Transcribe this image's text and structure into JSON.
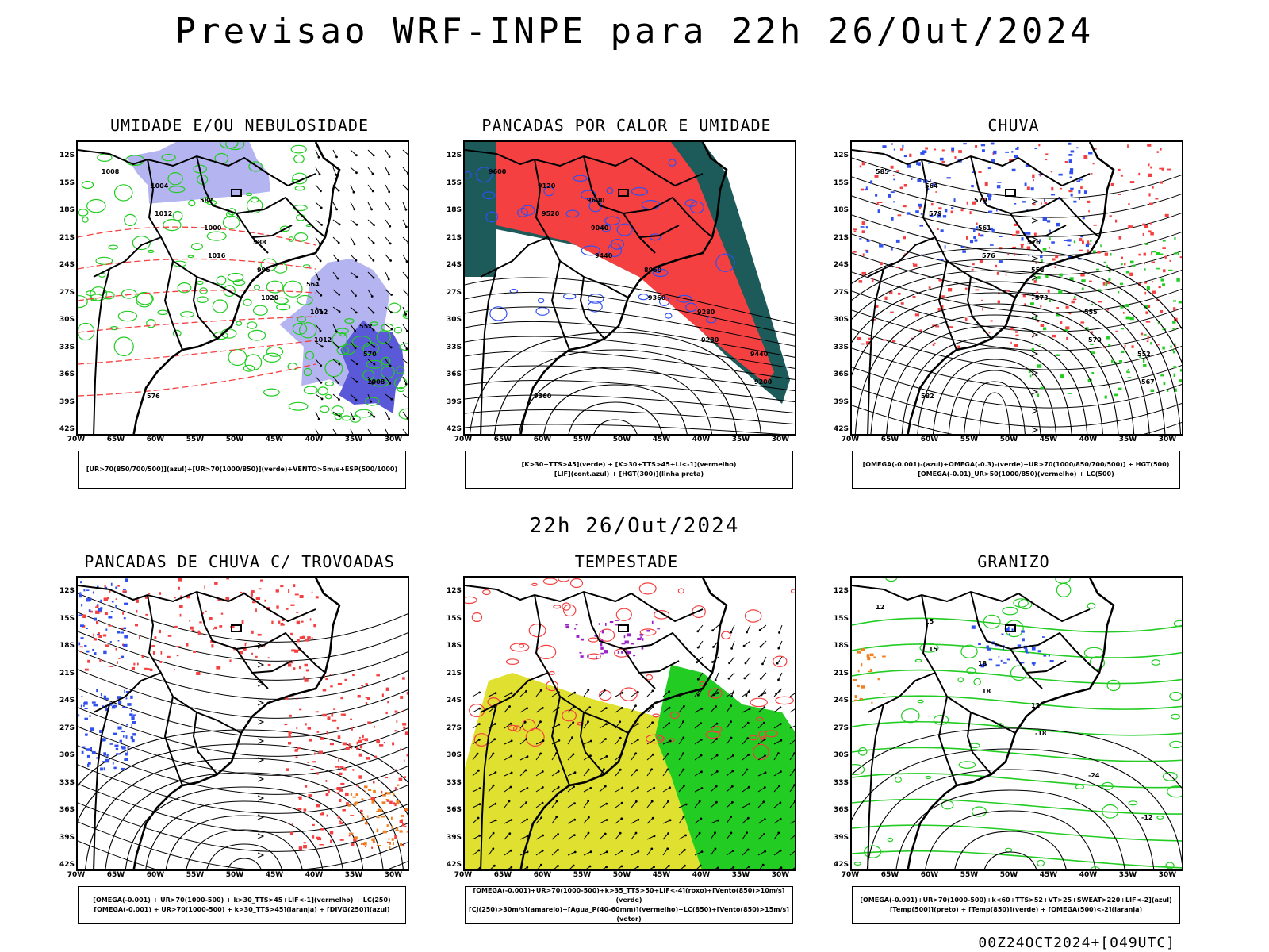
{
  "header": {
    "title": "Previsao WRF-INPE  para 22h 26/Out/2024"
  },
  "middle": {
    "title": "22h 26/Out/2024"
  },
  "footer": {
    "stamp": "00Z24OCT2024+[049UTC]"
  },
  "axes": {
    "lat": [
      "12S",
      "15S",
      "18S",
      "21S",
      "24S",
      "27S",
      "30S",
      "33S",
      "36S",
      "39S",
      "42S"
    ],
    "lon": [
      "70W",
      "65W",
      "60W",
      "55W",
      "50W",
      "45W",
      "40W",
      "35W",
      "30W"
    ]
  },
  "panels": [
    {
      "id": "umidade",
      "title": "UMIDADE E/OU NEBULOSIDADE",
      "legend": [
        "[UR>70(850/700/500)](azul)+[UR>70(1000/850)](verde)+VENTO>5m/s+ESP(500/1000)"
      ],
      "contour_labels": [
        "1008",
        "1012",
        "1016",
        "1020",
        "1012",
        "1008",
        "1004",
        "1000",
        "996",
        "1012",
        "570",
        "576",
        "582",
        "588",
        "564",
        "552"
      ]
    },
    {
      "id": "pancadas-calor",
      "title": "PANCADAS POR CALOR E UMIDADE",
      "legend": [
        "[K>30+TTS>45](verde) + [K>30+TTS>45+LI<-1](vermelho)",
        "[LIF](cont.azul) + [HGT(300)](linha preta)"
      ],
      "contour_labels": [
        "9600",
        "9520",
        "9440",
        "9360",
        "9280",
        "9200",
        "9120",
        "9040",
        "8960",
        "9280",
        "9440",
        "9360",
        "9600"
      ]
    },
    {
      "id": "chuva",
      "title": "CHUVA",
      "legend": [
        "[OMEGA(-0.001)-(azul)+OMEGA(-0.3)-(verde)+UR>70(1000/850/700/500)] + HGT(500)",
        "[OMEGA(-0.01)_UR>50(1000/850)(vermelho) + LC(500)"
      ],
      "contour_labels": [
        "585",
        "579",
        "576",
        "573",
        "570",
        "567",
        "564",
        "561",
        "558",
        "555",
        "552",
        "582",
        "579",
        "576"
      ]
    },
    {
      "id": "trovoadas",
      "title": "PANCADAS DE CHUVA C/ TROVOADAS",
      "legend": [
        "[OMEGA(-0.001) + UR>70(1000-500) + k>30_TTS>45+LIF<-1](vermelho) + LC(250)",
        "[OMEGA(-0.001) + UR>70(1000-500) + k>30_TTS>45](laranja) + [DIVG(250)](azul)"
      ],
      "contour_labels": []
    },
    {
      "id": "tempestade",
      "title": "TEMPESTADE",
      "legend": [
        "[OMEGA(-0.001)+UR>70(1000-500)+k>35_TTS>50+LIF<-4](roxo)+[Vento(850)>10m/s](verde)",
        "[CJ(250)>30m/s](amarelo)+[Agua_P(40-60mm)](vermelho)+LC(850)+[Vento(850)>15m/s](vetor)"
      ],
      "contour_labels": []
    },
    {
      "id": "granizo",
      "title": "GRANIZO",
      "legend": [
        "[OMEGA(-0.001)+UR>70(1000-500)+k<60+TTS>52+VT>25+SWEAT>220+LIF<-2](azul)",
        "[Temp(500)](preto) + [Temp(850)](verde) + [OMEGA(500)<-2](laranja)"
      ],
      "contour_labels": [
        "12",
        "15",
        "18",
        "-18",
        "-24",
        "-12",
        "15",
        "18",
        "12"
      ]
    }
  ],
  "colors": {
    "humid_blue": "#b4b4f0",
    "humid_dark": "#5a5ad8",
    "green": "#22cc22",
    "red": "#f44040",
    "teal": "#1d5a5a",
    "yellow": "#e0e030",
    "orange": "#f08020",
    "purple": "#9a20c8",
    "blue": "#3050f0"
  }
}
